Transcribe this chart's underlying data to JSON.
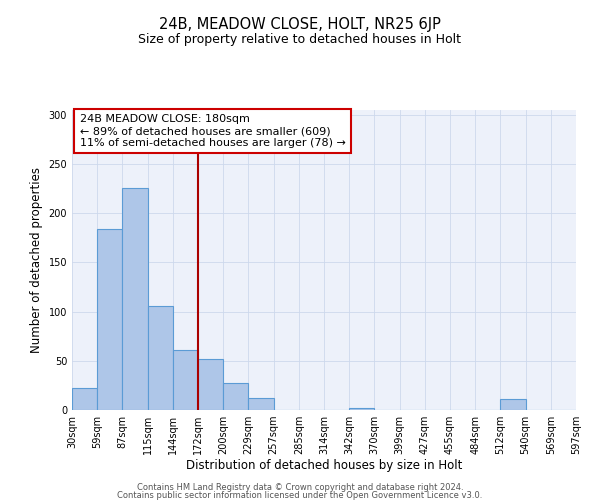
{
  "title_top": "24B, MEADOW CLOSE, HOLT, NR25 6JP",
  "title_sub": "Size of property relative to detached houses in Holt",
  "xlabel": "Distribution of detached houses by size in Holt",
  "ylabel": "Number of detached properties",
  "bin_labels": [
    "30sqm",
    "59sqm",
    "87sqm",
    "115sqm",
    "144sqm",
    "172sqm",
    "200sqm",
    "229sqm",
    "257sqm",
    "285sqm",
    "314sqm",
    "342sqm",
    "370sqm",
    "399sqm",
    "427sqm",
    "455sqm",
    "484sqm",
    "512sqm",
    "540sqm",
    "569sqm",
    "597sqm"
  ],
  "bar_heights": [
    22,
    184,
    226,
    106,
    61,
    52,
    27,
    12,
    0,
    0,
    0,
    2,
    0,
    0,
    0,
    0,
    0,
    11,
    0,
    0
  ],
  "bar_color": "#aec6e8",
  "bar_edgecolor": "#5b9bd5",
  "bar_linewidth": 0.8,
  "vline_bin_index": 5,
  "vline_color": "#aa0000",
  "vline_linewidth": 1.5,
  "annotation_line1": "24B MEADOW CLOSE: 180sqm",
  "annotation_line2": "← 89% of detached houses are smaller (609)",
  "annotation_line3": "11% of semi-detached houses are larger (78) →",
  "box_edgecolor": "#cc0000",
  "ylim": [
    0,
    305
  ],
  "yticks": [
    0,
    50,
    100,
    150,
    200,
    250,
    300
  ],
  "grid_color": "#cdd8ec",
  "background_color": "#edf1fa",
  "footer1": "Contains HM Land Registry data © Crown copyright and database right 2024.",
  "footer2": "Contains public sector information licensed under the Open Government Licence v3.0.",
  "title_fontsize": 10.5,
  "subtitle_fontsize": 9,
  "xlabel_fontsize": 8.5,
  "ylabel_fontsize": 8.5,
  "tick_fontsize": 7,
  "annotation_fontsize": 8,
  "footer_fontsize": 6
}
